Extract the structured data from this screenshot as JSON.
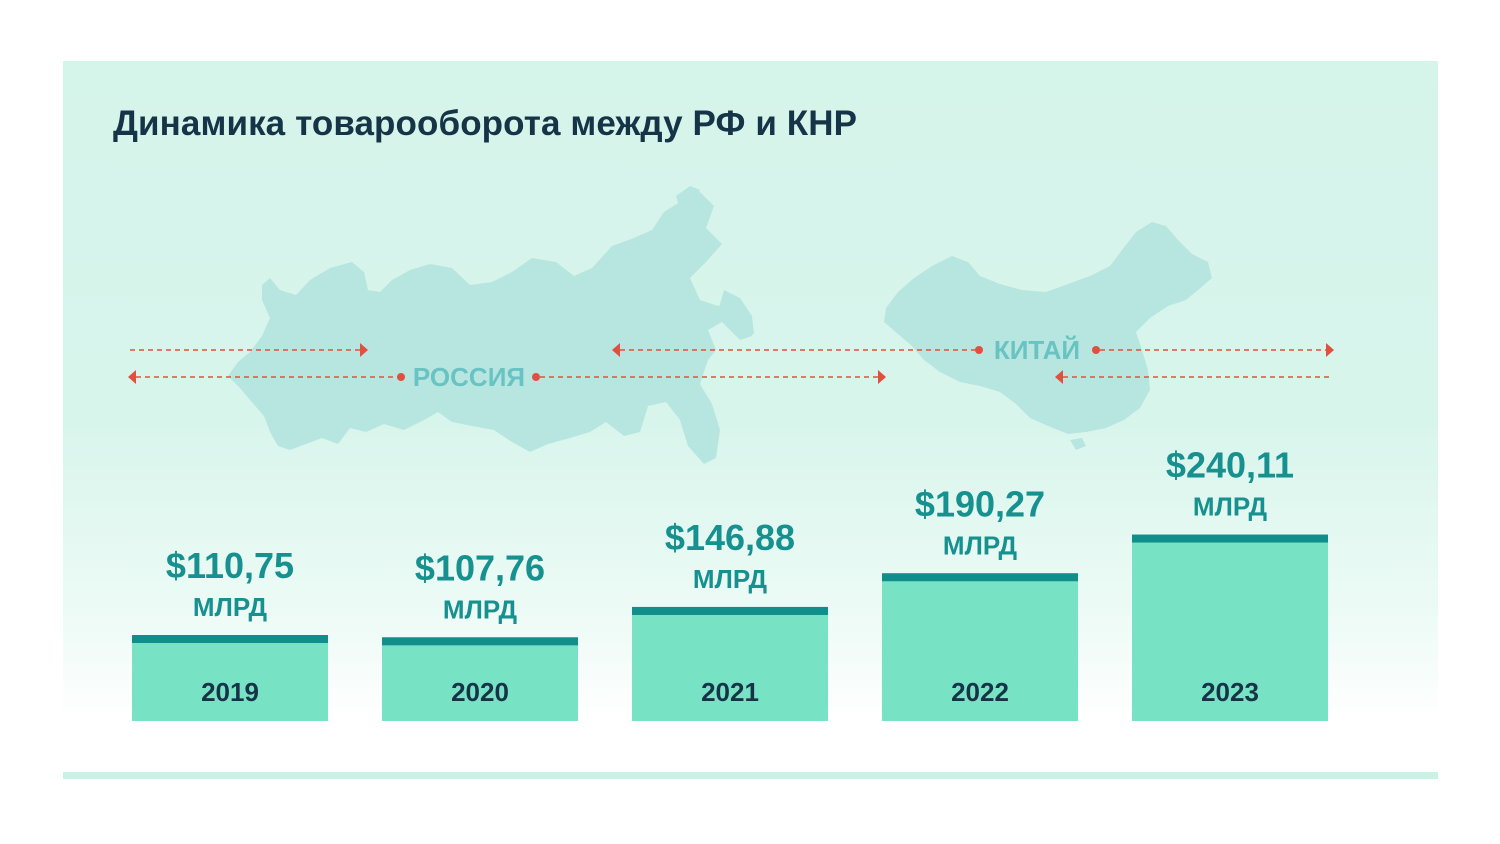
{
  "title": "Динамика товарооборота между РФ и КНР",
  "labels": {
    "russia": "РОССИЯ",
    "china": "КИТАЙ"
  },
  "colors": {
    "bar_fill": "#78e2c5",
    "bar_cap": "#0f8e8b",
    "value_text": "#17918f",
    "year_text": "#163447",
    "title": "#163447",
    "map_fill": "#b7e6e0",
    "arrow": "#e1503f"
  },
  "chart_data": {
    "type": "bar",
    "title": "Динамика товарооборота между РФ и КНР",
    "categories": [
      "2019",
      "2020",
      "2021",
      "2022",
      "2023"
    ],
    "values": [
      110.75,
      107.76,
      146.88,
      190.27,
      240.11
    ],
    "value_labels": [
      "$110,75",
      "$107,76",
      "$146,88",
      "$190,27",
      "$240,11"
    ],
    "unit_label": "МЛРД",
    "unit": "$ млрд",
    "grid": false,
    "legend": "none"
  }
}
